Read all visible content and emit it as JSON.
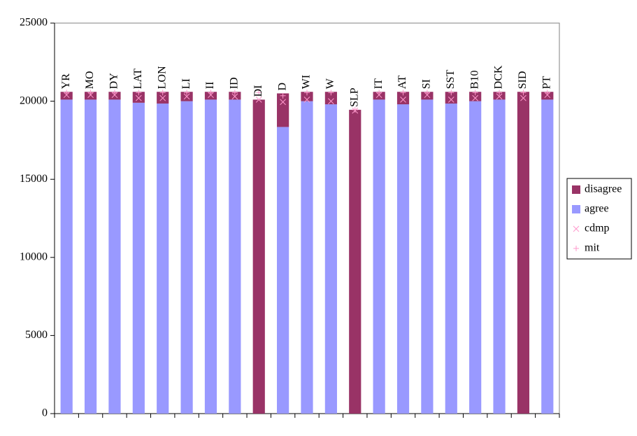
{
  "chart_data": {
    "type": "bar",
    "stacked": true,
    "categories": [
      "YR",
      "MO",
      "DY",
      "LAT",
      "LON",
      "LI",
      "II",
      "ID",
      "DI",
      "D",
      "WI",
      "W",
      "SLP",
      "IT",
      "AT",
      "SI",
      "SST",
      "B10",
      "DCK",
      "SID",
      "PT"
    ],
    "series": [
      {
        "name": "agree",
        "type": "bar",
        "color": "#9999ff",
        "values": [
          20100,
          20100,
          20100,
          19900,
          19850,
          20000,
          20100,
          20100,
          0,
          18350,
          20000,
          19800,
          0,
          20100,
          19800,
          20100,
          19850,
          20000,
          20100,
          0,
          20100
        ]
      },
      {
        "name": "disagree",
        "type": "bar",
        "color": "#993366",
        "values": [
          500,
          500,
          500,
          700,
          750,
          600,
          500,
          500,
          20100,
          2150,
          600,
          800,
          19450,
          500,
          800,
          500,
          750,
          600,
          500,
          20600,
          500
        ]
      },
      {
        "name": "cdmp",
        "type": "scatter",
        "marker": "x",
        "color": "#ff99cc",
        "values": [
          20400,
          20400,
          20400,
          20200,
          20200,
          20300,
          20400,
          20300,
          20100,
          19950,
          20100,
          20000,
          19400,
          20400,
          20100,
          20400,
          20100,
          20200,
          20300,
          20200,
          20400
        ]
      },
      {
        "name": "mit",
        "type": "scatter",
        "marker": "+",
        "color": "#ff99cc",
        "values": [
          20550,
          20550,
          20550,
          20550,
          20550,
          20550,
          20550,
          20550,
          20550,
          20350,
          20550,
          20550,
          19450,
          20550,
          20550,
          20550,
          20550,
          20550,
          20550,
          20550,
          20550
        ]
      }
    ],
    "legend_order": [
      1,
      0,
      2,
      3
    ],
    "ylim": [
      0,
      25000
    ],
    "yticks": [
      0,
      5000,
      10000,
      15000,
      20000,
      25000
    ]
  }
}
